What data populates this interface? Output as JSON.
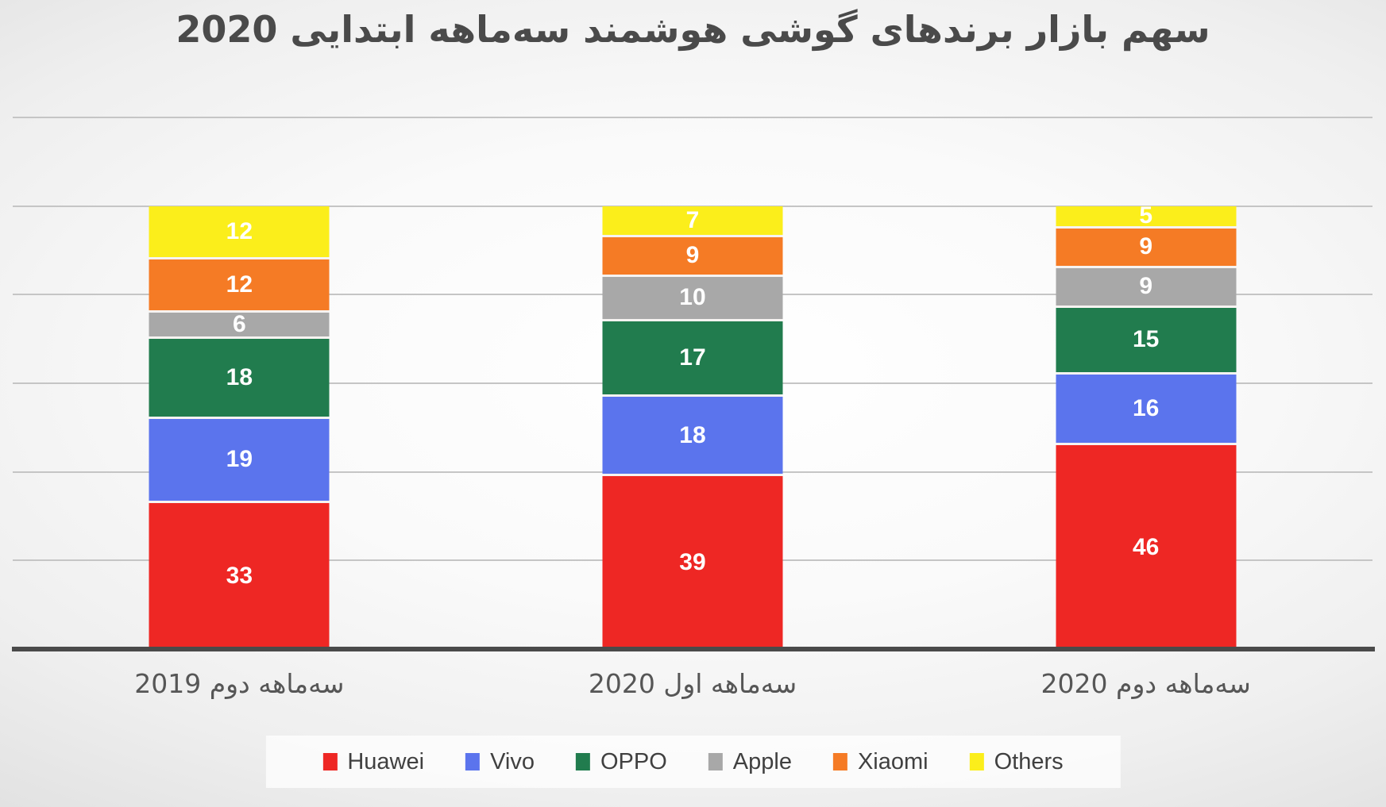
{
  "title": "سهم بازار برندهای گوشی هوشمند سه‌ماهه ابتدایی 2020",
  "chart_data": {
    "type": "bar",
    "stacked": true,
    "title": "سهم بازار برندهای گوشی هوشمند سه‌ماهه ابتدایی 2020",
    "categories": [
      "سه‌ماهه دوم 2019",
      "سه‌ماهه اول 2020",
      "سه‌ماهه دوم 2020"
    ],
    "series": [
      {
        "name": "Huawei",
        "color": "#ee2724",
        "values": [
          33,
          39,
          46
        ]
      },
      {
        "name": "Vivo",
        "color": "#5b74ed",
        "values": [
          19,
          18,
          16
        ]
      },
      {
        "name": "OPPO",
        "color": "#217c4e",
        "values": [
          18,
          17,
          15
        ]
      },
      {
        "name": "Apple",
        "color": "#a8a8a8",
        "values": [
          6,
          10,
          9
        ]
      },
      {
        "name": "Xiaomi",
        "color": "#f57b25",
        "values": [
          12,
          9,
          9
        ]
      },
      {
        "name": "Others",
        "color": "#fbee1b",
        "values": [
          12,
          7,
          5
        ]
      }
    ],
    "ylim": [
      0,
      120
    ],
    "gridline_step": 20,
    "grid": true,
    "y_tick_labels_visible": false,
    "value_labels": "inside center, white bold",
    "legend_position": "bottom",
    "style": {
      "axis_color": "#4a4a4a",
      "gridline_color": "#c5c5c5",
      "title_color": "#4a4a4a",
      "category_label_color": "#565656",
      "legend_text_color": "#404040",
      "legend_background": "#ffffff"
    }
  }
}
